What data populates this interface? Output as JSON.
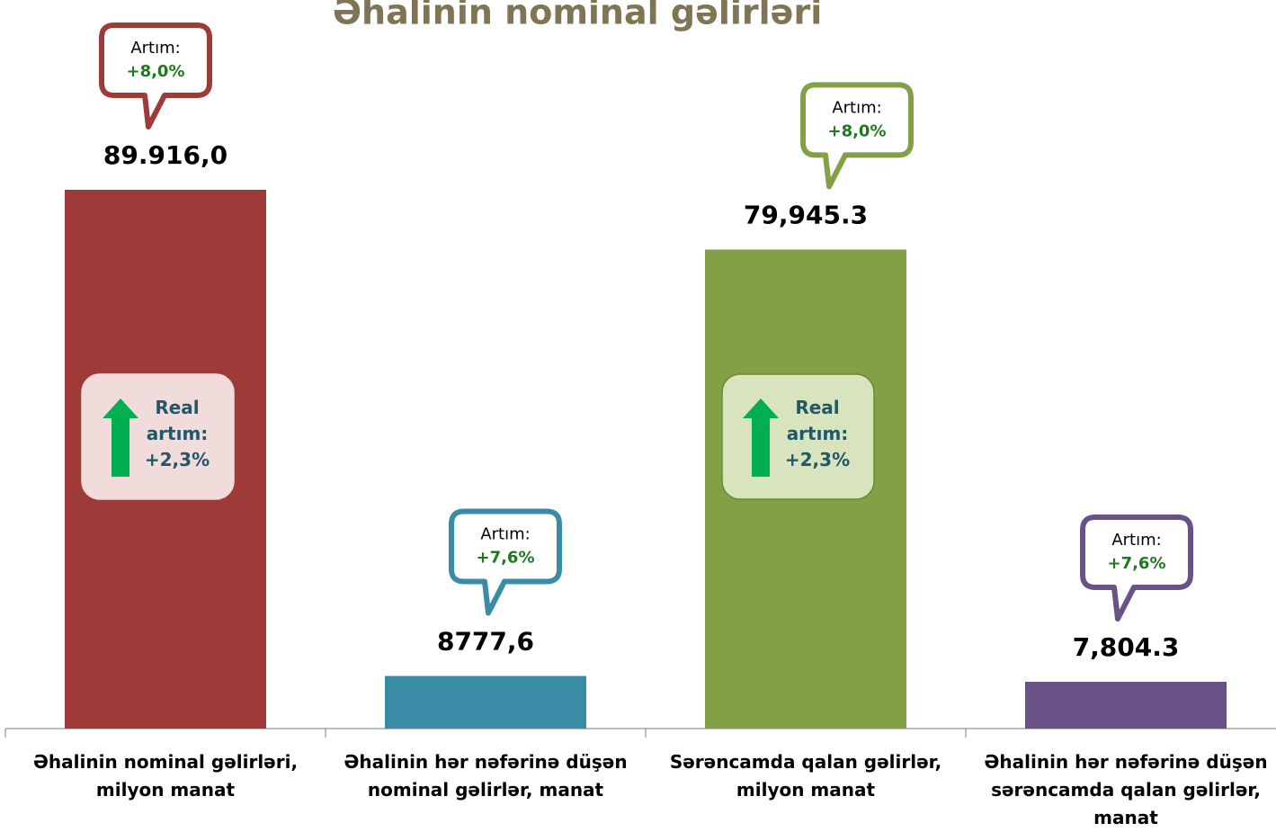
{
  "chart_data": {
    "type": "bar",
    "title": "Əhalinin nominal gəlirləri",
    "categories": [
      "Əhalinin nominal gəlirləri, milyon manat",
      "Əhalinin hər nəfərinə düşən nominal gəlirlər, manat",
      "Sərəncamda qalan gəlirlər, milyon manat",
      "Əhalinin hər nəfərinə düşən sərəncamda qalan gəlirlər, manat"
    ],
    "values": [
      89916.0,
      8777.6,
      79945.3,
      7804.3
    ],
    "value_labels": [
      "89.916,0",
      "8777,6",
      "79,945.3",
      "7,804.3"
    ],
    "colors": [
      "#9e3b39",
      "#3a8ca6",
      "#82a046",
      "#6b5286"
    ],
    "callouts": [
      {
        "label": "Artım:",
        "value": "+8,0%"
      },
      {
        "label": "Artım:",
        "value": "+7,6%"
      },
      {
        "label": "Artım:",
        "value": "+8,0%"
      },
      {
        "label": "Artım:",
        "value": "+7,6%"
      }
    ],
    "real_growth": [
      {
        "label": "Real artım:",
        "value": "+2,3%"
      },
      null,
      {
        "label": "Real artım:",
        "value": "+2,3%"
      },
      null
    ]
  }
}
